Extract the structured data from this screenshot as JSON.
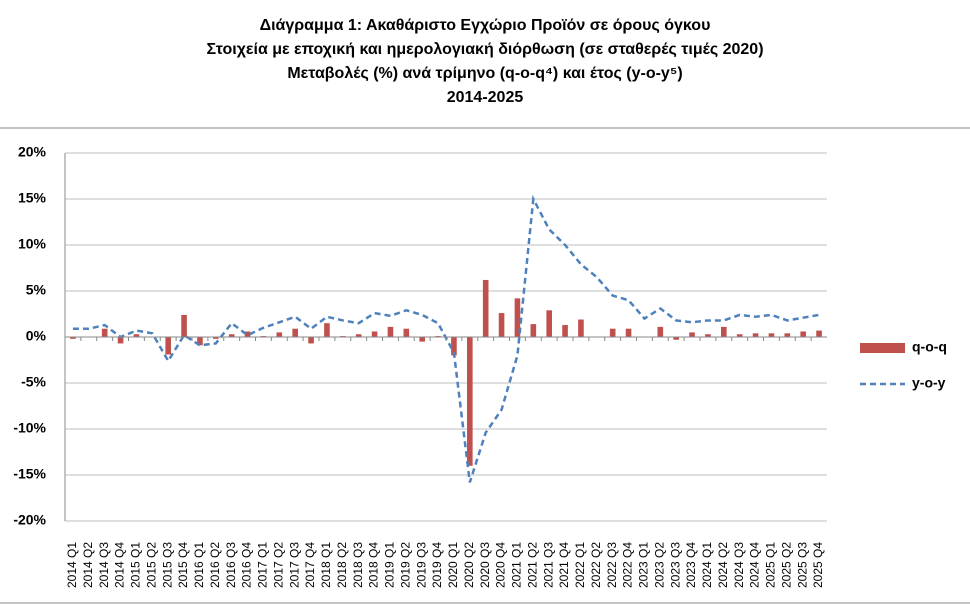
{
  "chart_data": {
    "type": "bar-line",
    "title": [
      "Διάγραμμα 1: Ακαθάριστο Εγχώριο Προϊόν σε όρους όγκου",
      "Στοιχεία με εποχική και ημερολογιακή διόρθωση (σε σταθερές τιμές 2020)",
      "Μεταβολές (%) ανά τρίμηνο (q-o-q⁴) και έτος (y-o-y⁵)",
      "2014-2025"
    ],
    "categories": [
      "2014 Q1",
      "2014 Q2",
      "2014 Q3",
      "2014 Q4",
      "2015 Q1",
      "2015 Q2",
      "2015 Q3",
      "2015 Q4",
      "2016 Q1",
      "2016 Q2",
      "2016 Q3",
      "2016 Q4",
      "2017 Q1",
      "2017 Q2",
      "2017 Q3",
      "2017 Q4",
      "2018 Q1",
      "2018 Q2",
      "2018 Q3",
      "2018 Q4",
      "2019 Q1",
      "2019 Q2",
      "2019 Q3",
      "2019 Q4",
      "2020 Q1",
      "2020 Q2",
      "2020 Q3",
      "2020 Q4",
      "2021 Q1",
      "2021 Q2",
      "2021 Q3",
      "2021 Q4",
      "2022 Q1",
      "2022 Q2",
      "2022 Q3",
      "2022 Q4",
      "2023 Q1",
      "2023 Q2",
      "2023 Q3",
      "2023 Q4",
      "2024 Q1",
      "2024 Q2",
      "2024 Q3",
      "2024 Q4",
      "2025 Q1",
      "2025 Q2",
      "2025 Q3",
      "2025 Q4"
    ],
    "series": [
      {
        "name": "q-o-q",
        "type": "bar",
        "color": "#c0504d",
        "values": [
          -0.2,
          0.0,
          0.9,
          -0.7,
          0.3,
          0.0,
          -1.9,
          2.4,
          -0.9,
          -0.2,
          0.3,
          0.6,
          0.1,
          0.5,
          0.9,
          -0.7,
          1.5,
          0.1,
          0.3,
          0.6,
          1.1,
          0.9,
          -0.5,
          0.1,
          -2.0,
          -14.0,
          6.2,
          2.6,
          4.2,
          1.4,
          2.9,
          1.3,
          1.9,
          0.0,
          0.9,
          0.9,
          0.0,
          1.1,
          -0.3,
          0.5,
          0.3,
          1.1,
          0.3,
          0.4,
          0.4,
          0.4,
          0.6,
          0.7
        ]
      },
      {
        "name": "y-o-y",
        "type": "line",
        "color": "#4f81bd",
        "dashed": true,
        "values": [
          0.9,
          0.9,
          1.3,
          0.0,
          0.7,
          0.4,
          -2.6,
          0.2,
          -0.9,
          -0.7,
          1.5,
          0.2,
          1.0,
          1.6,
          2.2,
          0.9,
          2.2,
          1.8,
          1.5,
          2.6,
          2.3,
          2.9,
          2.4,
          1.5,
          -1.7,
          -15.8,
          -10.4,
          -7.9,
          -2.0,
          15.0,
          11.7,
          10.0,
          7.9,
          6.5,
          4.5,
          4.0,
          2.0,
          3.1,
          1.8,
          1.6,
          1.8,
          1.8,
          2.4,
          2.2,
          2.4,
          1.8,
          2.1,
          2.4
        ]
      }
    ],
    "ylim": [
      -20,
      20
    ],
    "yticks": [
      {
        "value": -20,
        "label": "-20%"
      },
      {
        "value": -15,
        "label": "-15%"
      },
      {
        "value": -10,
        "label": "-10%"
      },
      {
        "value": -5,
        "label": "-5%"
      },
      {
        "value": 0,
        "label": "0%"
      },
      {
        "value": 5,
        "label": "5%"
      },
      {
        "value": 10,
        "label": "10%"
      },
      {
        "value": 15,
        "label": "15%"
      },
      {
        "value": 20,
        "label": "20%"
      }
    ],
    "grid": true,
    "legend": "right"
  }
}
